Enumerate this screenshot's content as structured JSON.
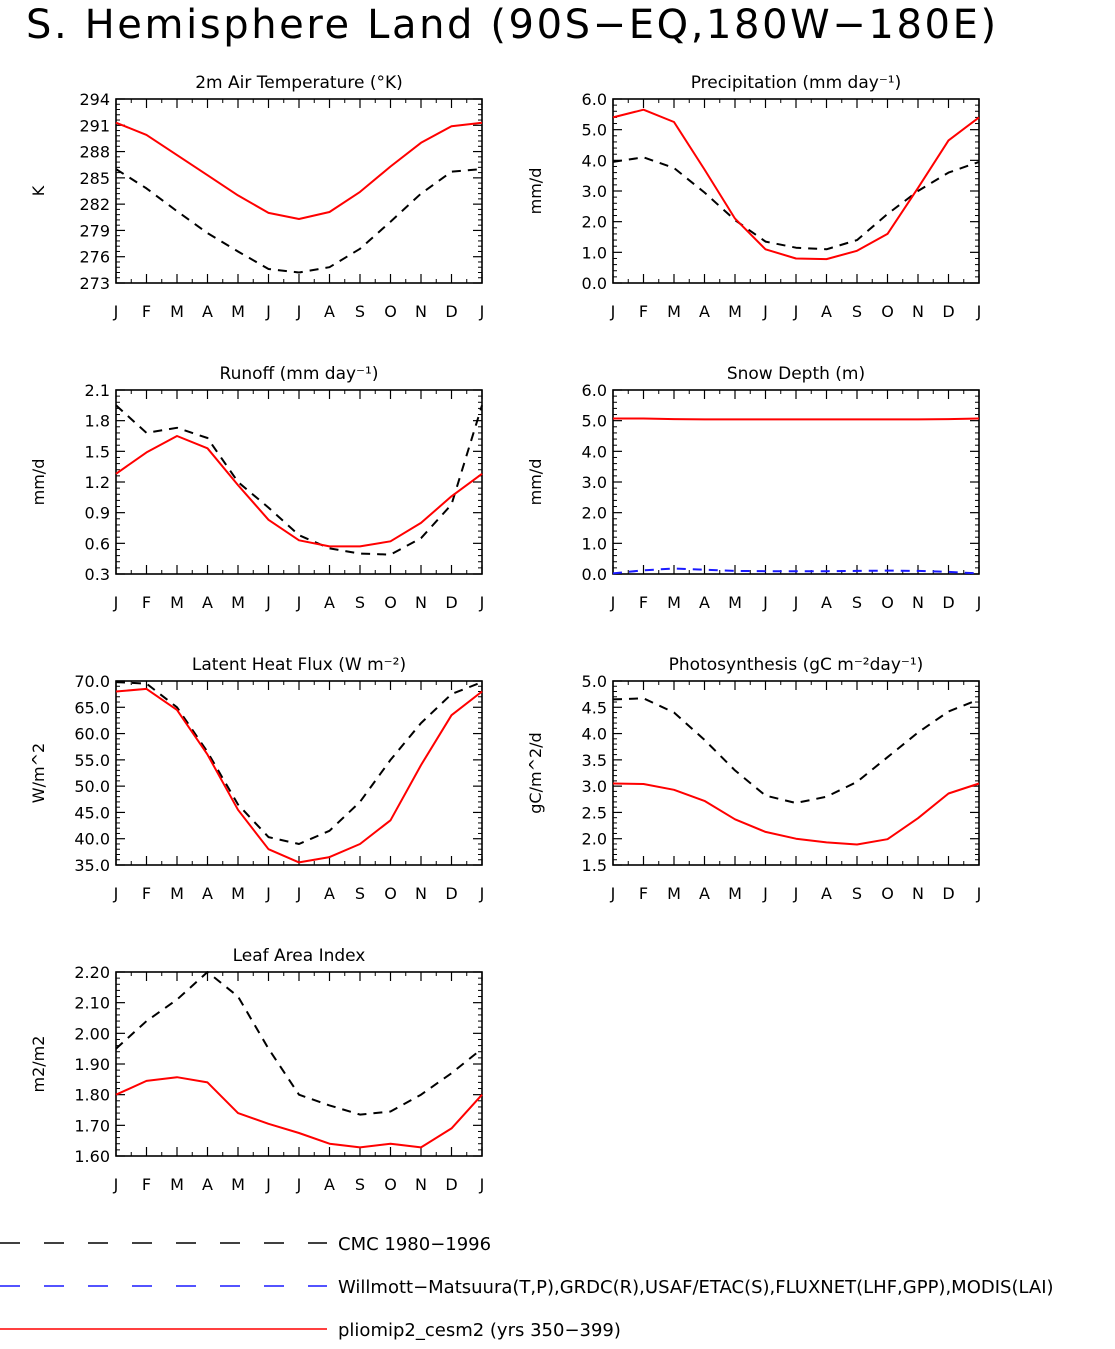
{
  "page_title": "S. Hemisphere Land (90S−EQ,180W−180E)",
  "month_labels": [
    "J",
    "F",
    "M",
    "A",
    "M",
    "J",
    "J",
    "A",
    "S",
    "O",
    "N",
    "D",
    "J"
  ],
  "colors": {
    "obs": "#000000",
    "alt_obs": "#1a1aff",
    "model": "#ff0000"
  },
  "legend": [
    {
      "label": "CMC 1980−1996",
      "color": "#000000",
      "style": "dashed"
    },
    {
      "label": "Willmott−Matsuura(T,P),GRDC(R),USAF/ETAC(S),FLUXNET(LHF,GPP),MODIS(LAI)",
      "color": "#1a1aff",
      "style": "dashed"
    },
    {
      "label": "pliomip2_cesm2 (yrs 350−399)",
      "color": "#ff0000",
      "style": "solid"
    }
  ],
  "chart_data": [
    {
      "type": "line",
      "title": "2m Air Temperature (°K)",
      "ylabel": "K",
      "ylim": [
        273,
        294
      ],
      "yticks": [
        "273",
        "276",
        "279",
        "282",
        "285",
        "288",
        "291",
        "294"
      ],
      "x": [
        "J",
        "F",
        "M",
        "A",
        "M",
        "J",
        "J",
        "A",
        "S",
        "O",
        "N",
        "D",
        "J"
      ],
      "series": [
        {
          "key": "obs",
          "style": "dashed",
          "values": [
            286.0,
            283.8,
            281.2,
            278.7,
            276.6,
            274.6,
            274.2,
            274.8,
            276.9,
            280.0,
            283.2,
            285.7,
            286.0
          ]
        },
        {
          "key": "model",
          "style": "solid",
          "values": [
            291.3,
            289.9,
            287.6,
            285.3,
            283.0,
            281.0,
            280.3,
            281.1,
            283.4,
            286.3,
            289.0,
            290.9,
            291.3
          ]
        }
      ]
    },
    {
      "type": "line",
      "title": "Precipitation (mm day⁻¹)",
      "ylabel": "mm/d",
      "ylim": [
        0.0,
        6.0
      ],
      "yticks": [
        "0.0",
        "1.0",
        "2.0",
        "3.0",
        "4.0",
        "5.0",
        "6.0"
      ],
      "x": [
        "J",
        "F",
        "M",
        "A",
        "M",
        "J",
        "J",
        "A",
        "S",
        "O",
        "N",
        "D",
        "J"
      ],
      "series": [
        {
          "key": "obs",
          "style": "dashed",
          "values": [
            3.95,
            4.1,
            3.75,
            2.95,
            2.05,
            1.35,
            1.15,
            1.1,
            1.4,
            2.25,
            3.0,
            3.6,
            3.95
          ]
        },
        {
          "key": "model",
          "style": "solid",
          "values": [
            5.4,
            5.65,
            5.25,
            3.7,
            2.1,
            1.1,
            0.8,
            0.78,
            1.05,
            1.6,
            3.1,
            4.65,
            5.4
          ]
        }
      ]
    },
    {
      "type": "line",
      "title": "Runoff (mm day⁻¹)",
      "ylabel": "mm/d",
      "ylim": [
        0.3,
        2.1
      ],
      "yticks": [
        "0.3",
        "0.6",
        "0.9",
        "1.2",
        "1.5",
        "1.8",
        "2.1"
      ],
      "x": [
        "J",
        "F",
        "M",
        "A",
        "M",
        "J",
        "J",
        "A",
        "S",
        "O",
        "N",
        "D",
        "J"
      ],
      "series": [
        {
          "key": "obs",
          "style": "dashed",
          "values": [
            1.95,
            1.68,
            1.73,
            1.63,
            1.2,
            0.95,
            0.68,
            0.55,
            0.5,
            0.49,
            0.65,
            0.98,
            1.95
          ]
        },
        {
          "key": "model",
          "style": "solid",
          "values": [
            1.28,
            1.49,
            1.65,
            1.53,
            1.17,
            0.83,
            0.63,
            0.57,
            0.57,
            0.62,
            0.8,
            1.06,
            1.28
          ]
        }
      ]
    },
    {
      "type": "line",
      "title": "Snow Depth (m)",
      "ylabel": "mm/d",
      "ylim": [
        0.0,
        6.0
      ],
      "yticks": [
        "0.0",
        "1.0",
        "2.0",
        "3.0",
        "4.0",
        "5.0",
        "6.0"
      ],
      "x": [
        "J",
        "F",
        "M",
        "A",
        "M",
        "J",
        "J",
        "A",
        "S",
        "O",
        "N",
        "D",
        "J"
      ],
      "series": [
        {
          "key": "alt_obs",
          "style": "dashed",
          "values": [
            0.02,
            0.12,
            0.18,
            0.14,
            0.1,
            0.09,
            0.09,
            0.09,
            0.1,
            0.11,
            0.1,
            0.07,
            0.02
          ]
        },
        {
          "key": "model",
          "style": "solid",
          "values": [
            5.07,
            5.07,
            5.05,
            5.04,
            5.04,
            5.04,
            5.04,
            5.04,
            5.04,
            5.04,
            5.04,
            5.05,
            5.07
          ]
        }
      ]
    },
    {
      "type": "line",
      "title": "Latent Heat Flux (W m⁻²)",
      "ylabel": "W/m^2",
      "ylim": [
        35.0,
        70.0
      ],
      "yticks": [
        "35.0",
        "40.0",
        "45.0",
        "50.0",
        "55.0",
        "60.0",
        "65.0",
        "70.0"
      ],
      "x": [
        "J",
        "F",
        "M",
        "A",
        "M",
        "J",
        "J",
        "A",
        "S",
        "O",
        "N",
        "D",
        "J"
      ],
      "series": [
        {
          "key": "obs",
          "style": "dashed",
          "values": [
            69.8,
            69.5,
            65.0,
            56.5,
            46.5,
            40.3,
            39.0,
            41.5,
            47.0,
            55.0,
            62.0,
            67.5,
            69.8
          ]
        },
        {
          "key": "model",
          "style": "solid",
          "values": [
            68.0,
            68.5,
            64.5,
            56.0,
            45.5,
            38.0,
            35.5,
            36.5,
            39.0,
            43.5,
            54.0,
            63.5,
            68.0
          ]
        }
      ]
    },
    {
      "type": "line",
      "title": "Photosynthesis (gC m⁻²day⁻¹)",
      "ylabel": "gC/m^2/d",
      "ylim": [
        1.5,
        5.0
      ],
      "yticks": [
        "1.5",
        "2.0",
        "2.5",
        "3.0",
        "3.5",
        "4.0",
        "4.5",
        "5.0"
      ],
      "x": [
        "J",
        "F",
        "M",
        "A",
        "M",
        "J",
        "J",
        "A",
        "S",
        "O",
        "N",
        "D",
        "J"
      ],
      "series": [
        {
          "key": "obs",
          "style": "dashed",
          "values": [
            4.65,
            4.67,
            4.4,
            3.88,
            3.3,
            2.82,
            2.68,
            2.8,
            3.08,
            3.55,
            4.02,
            4.42,
            4.65
          ]
        },
        {
          "key": "model",
          "style": "solid",
          "values": [
            3.05,
            3.04,
            2.93,
            2.72,
            2.37,
            2.13,
            2.0,
            1.93,
            1.89,
            1.99,
            2.39,
            2.86,
            3.05
          ]
        }
      ]
    },
    {
      "type": "line",
      "title": "Leaf Area Index",
      "ylabel": "m2/m2",
      "ylim": [
        1.6,
        2.2
      ],
      "yticks": [
        "1.60",
        "1.70",
        "1.80",
        "1.90",
        "2.00",
        "2.10",
        "2.20"
      ],
      "x": [
        "J",
        "F",
        "M",
        "A",
        "M",
        "J",
        "J",
        "A",
        "S",
        "O",
        "N",
        "D",
        "J"
      ],
      "series": [
        {
          "key": "obs",
          "style": "dashed",
          "values": [
            1.95,
            2.04,
            2.11,
            2.2,
            2.12,
            1.95,
            1.8,
            1.765,
            1.735,
            1.745,
            1.8,
            1.87,
            1.95
          ]
        },
        {
          "key": "model",
          "style": "solid",
          "values": [
            1.8,
            1.845,
            1.857,
            1.84,
            1.74,
            1.705,
            1.675,
            1.64,
            1.628,
            1.64,
            1.628,
            1.69,
            1.8
          ]
        }
      ]
    }
  ]
}
